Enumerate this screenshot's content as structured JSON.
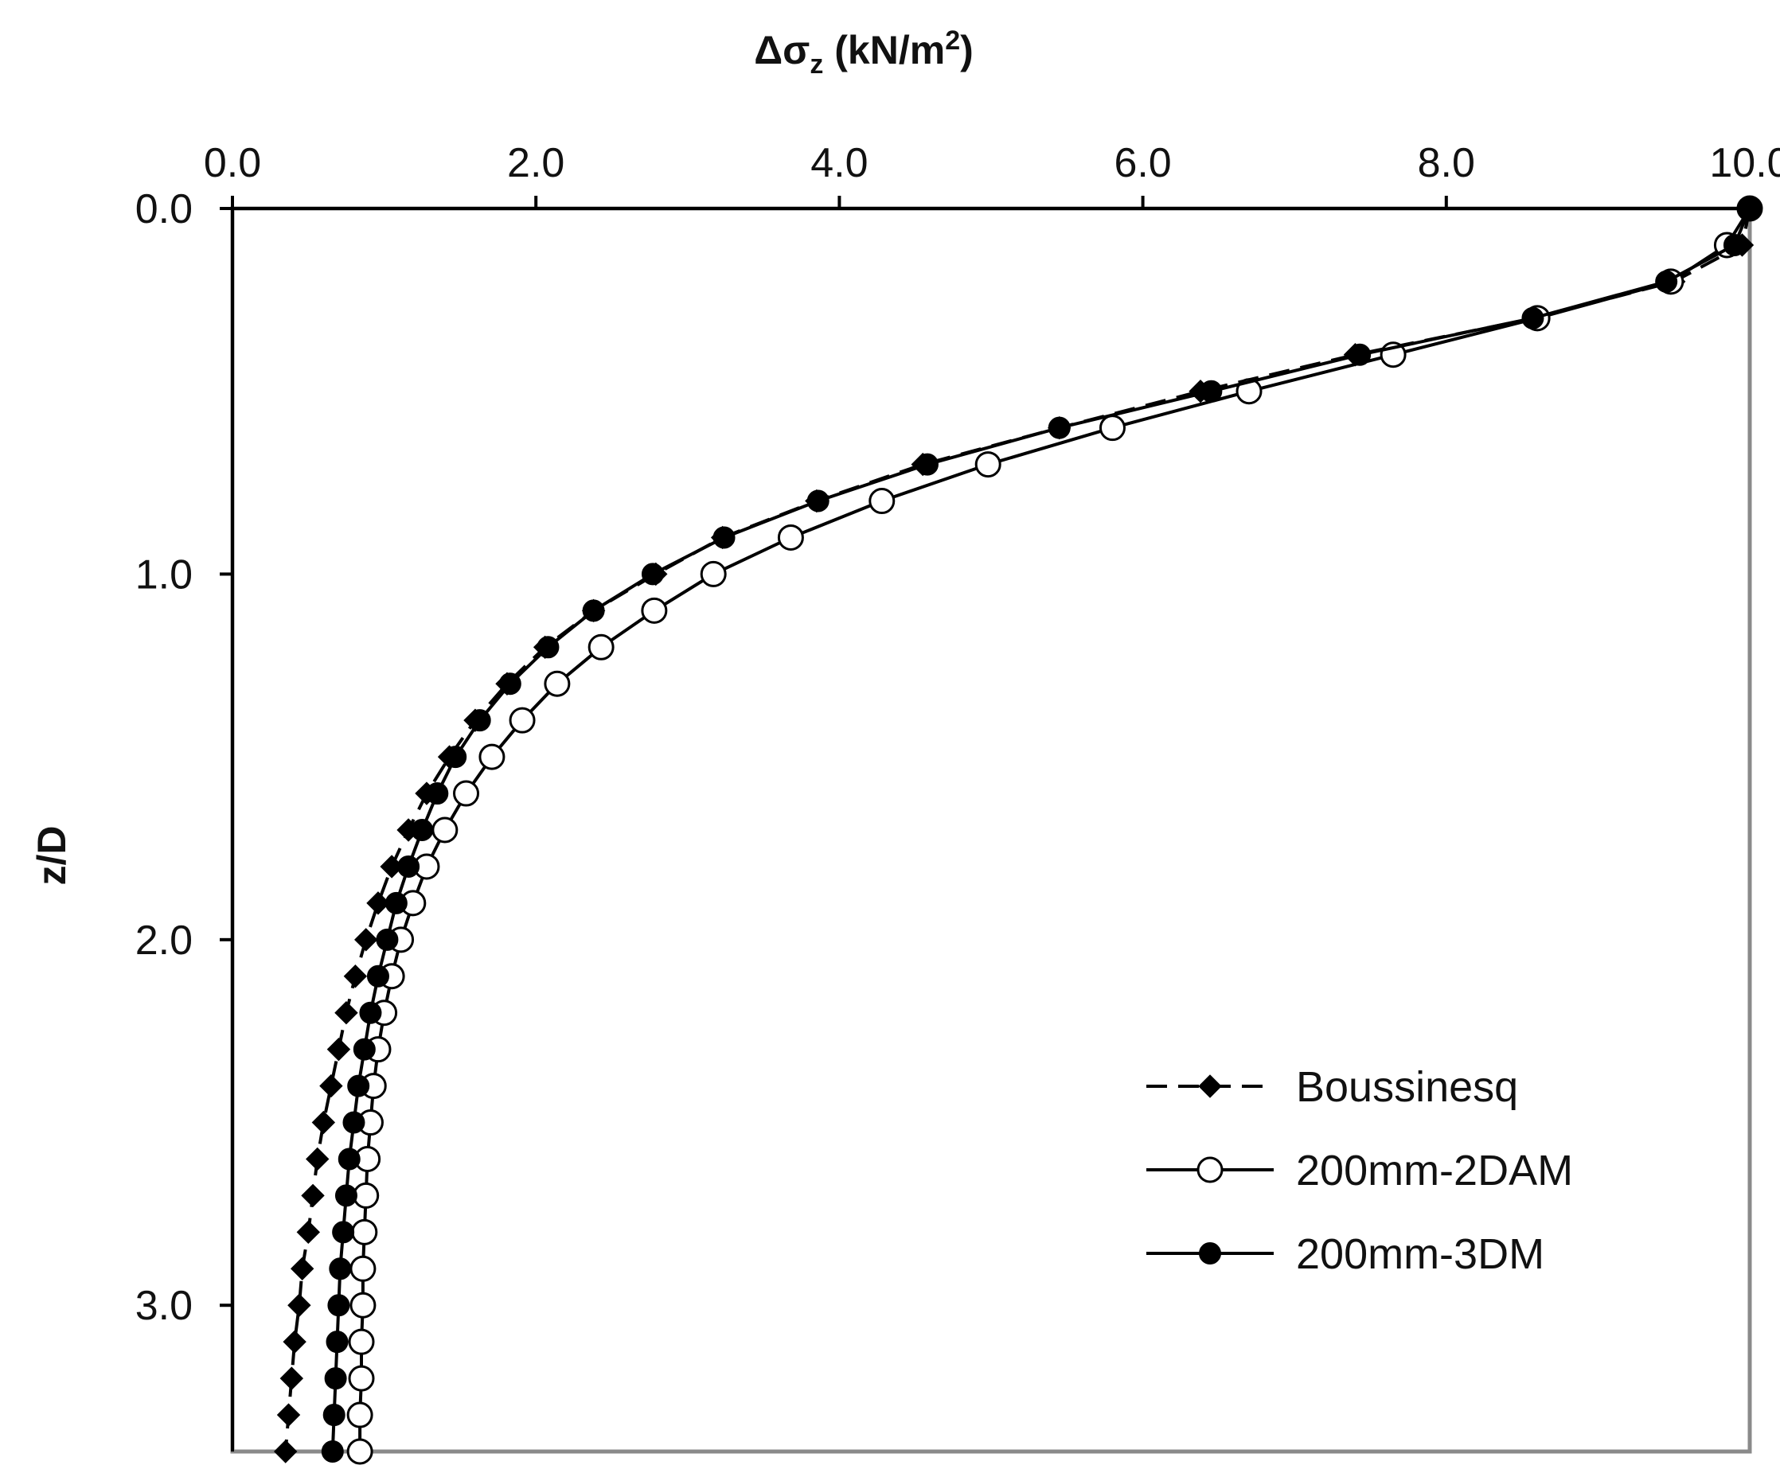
{
  "chart_data": {
    "type": "line",
    "title": "",
    "xlabel": "Δσz (kN/m2)",
    "xlabel_parts": {
      "main": "Δσ",
      "sub": "z",
      "unit_open": " (kN/m",
      "sup": "2",
      "unit_close": ")"
    },
    "ylabel": "z/D",
    "xlim": [
      0,
      10.0
    ],
    "ylim": [
      3.4,
      0.0
    ],
    "x_axis_position": "top",
    "y_axis_inverted": true,
    "grid": false,
    "legend_position": "bottom-right",
    "x_ticks": [
      "0.0",
      "2.0",
      "4.0",
      "6.0",
      "8.0",
      "10.0"
    ],
    "x_tick_values": [
      0,
      2,
      4,
      6,
      8,
      10
    ],
    "y_ticks": [
      "0.0",
      "1.0",
      "2.0",
      "3.0"
    ],
    "y_tick_values": [
      0,
      1,
      2,
      3
    ],
    "series": [
      {
        "name": "Boussinesq",
        "style": "dashed",
        "marker": "diamond",
        "color": "#000000",
        "points": [
          [
            10.0,
            0.0
          ],
          [
            9.95,
            0.1
          ],
          [
            9.5,
            0.2
          ],
          [
            8.58,
            0.3
          ],
          [
            7.4,
            0.4
          ],
          [
            6.38,
            0.5
          ],
          [
            5.45,
            0.6
          ],
          [
            4.55,
            0.7
          ],
          [
            3.85,
            0.8
          ],
          [
            3.23,
            0.9
          ],
          [
            2.79,
            1.0
          ],
          [
            2.38,
            1.1
          ],
          [
            2.06,
            1.2
          ],
          [
            1.81,
            1.3
          ],
          [
            1.6,
            1.4
          ],
          [
            1.43,
            1.5
          ],
          [
            1.28,
            1.6
          ],
          [
            1.16,
            1.7
          ],
          [
            1.05,
            1.8
          ],
          [
            0.96,
            1.9
          ],
          [
            0.88,
            2.0
          ],
          [
            0.81,
            2.1
          ],
          [
            0.75,
            2.2
          ],
          [
            0.7,
            2.3
          ],
          [
            0.65,
            2.4
          ],
          [
            0.6,
            2.5
          ],
          [
            0.56,
            2.6
          ],
          [
            0.53,
            2.7
          ],
          [
            0.5,
            2.8
          ],
          [
            0.46,
            2.9
          ],
          [
            0.44,
            3.0
          ],
          [
            0.41,
            3.1
          ],
          [
            0.39,
            3.2
          ],
          [
            0.37,
            3.3
          ],
          [
            0.35,
            3.4
          ]
        ]
      },
      {
        "name": "200mm-2DAM",
        "style": "solid",
        "marker": "circle-open",
        "color": "#000000",
        "points": [
          [
            10.0,
            0.0
          ],
          [
            9.85,
            0.1
          ],
          [
            9.48,
            0.2
          ],
          [
            8.6,
            0.3
          ],
          [
            7.65,
            0.4
          ],
          [
            6.7,
            0.5
          ],
          [
            5.8,
            0.6
          ],
          [
            4.98,
            0.7
          ],
          [
            4.28,
            0.8
          ],
          [
            3.68,
            0.9
          ],
          [
            3.17,
            1.0
          ],
          [
            2.78,
            1.1
          ],
          [
            2.43,
            1.2
          ],
          [
            2.14,
            1.3
          ],
          [
            1.91,
            1.4
          ],
          [
            1.71,
            1.5
          ],
          [
            1.54,
            1.6
          ],
          [
            1.4,
            1.7
          ],
          [
            1.28,
            1.8
          ],
          [
            1.19,
            1.9
          ],
          [
            1.11,
            2.0
          ],
          [
            1.05,
            2.1
          ],
          [
            1.0,
            2.2
          ],
          [
            0.96,
            2.3
          ],
          [
            0.93,
            2.4
          ],
          [
            0.91,
            2.5
          ],
          [
            0.89,
            2.6
          ],
          [
            0.88,
            2.7
          ],
          [
            0.87,
            2.8
          ],
          [
            0.86,
            2.9
          ],
          [
            0.86,
            3.0
          ],
          [
            0.85,
            3.1
          ],
          [
            0.85,
            3.2
          ],
          [
            0.84,
            3.3
          ],
          [
            0.84,
            3.4
          ]
        ]
      },
      {
        "name": "200mm-3DM",
        "style": "solid",
        "marker": "circle-filled",
        "color": "#000000",
        "points": [
          [
            10.0,
            0.0
          ],
          [
            9.9,
            0.1
          ],
          [
            9.45,
            0.2
          ],
          [
            8.57,
            0.3
          ],
          [
            7.43,
            0.4
          ],
          [
            6.45,
            0.5
          ],
          [
            5.45,
            0.6
          ],
          [
            4.58,
            0.7
          ],
          [
            3.86,
            0.8
          ],
          [
            3.24,
            0.9
          ],
          [
            2.77,
            1.0
          ],
          [
            2.38,
            1.1
          ],
          [
            2.08,
            1.2
          ],
          [
            1.83,
            1.3
          ],
          [
            1.63,
            1.4
          ],
          [
            1.47,
            1.5
          ],
          [
            1.35,
            1.6
          ],
          [
            1.25,
            1.7
          ],
          [
            1.16,
            1.8
          ],
          [
            1.08,
            1.9
          ],
          [
            1.02,
            2.0
          ],
          [
            0.96,
            2.1
          ],
          [
            0.91,
            2.2
          ],
          [
            0.87,
            2.3
          ],
          [
            0.83,
            2.4
          ],
          [
            0.8,
            2.5
          ],
          [
            0.77,
            2.6
          ],
          [
            0.75,
            2.7
          ],
          [
            0.73,
            2.8
          ],
          [
            0.71,
            2.9
          ],
          [
            0.7,
            3.0
          ],
          [
            0.69,
            3.1
          ],
          [
            0.68,
            3.2
          ],
          [
            0.67,
            3.3
          ],
          [
            0.66,
            3.4
          ]
        ]
      }
    ]
  }
}
